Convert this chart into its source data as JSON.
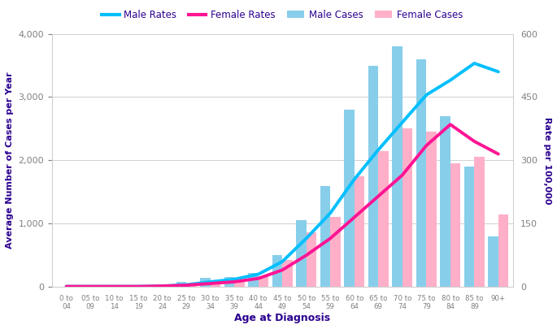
{
  "categories": [
    "0 to\n04",
    "05 to\n09",
    "10 to\n14",
    "15 to\n19",
    "20 to\n24",
    "25 to\n29",
    "30 to\n34",
    "35 to\n39",
    "40 to\n44",
    "45 to\n49",
    "50 to\n54",
    "55 to\n59",
    "60 to\n64",
    "65 to\n69",
    "70 to\n74",
    "75 to\n79",
    "80 to\n84",
    "85 to\n89",
    "90+"
  ],
  "male_cases": [
    5,
    5,
    5,
    5,
    15,
    80,
    140,
    150,
    220,
    500,
    1050,
    1600,
    2800,
    3500,
    3800,
    3600,
    2700,
    1900,
    800
  ],
  "female_cases": [
    5,
    5,
    5,
    5,
    10,
    55,
    100,
    110,
    175,
    420,
    860,
    1100,
    1750,
    2150,
    2500,
    2450,
    1950,
    2050,
    1150
  ],
  "male_rates": [
    1,
    1,
    1,
    1,
    2,
    5,
    12,
    18,
    30,
    60,
    115,
    175,
    255,
    325,
    390,
    455,
    490,
    530,
    510
  ],
  "female_rates": [
    1,
    1,
    1,
    1,
    2,
    4,
    8,
    12,
    20,
    40,
    75,
    115,
    165,
    215,
    265,
    335,
    385,
    345,
    315
  ],
  "male_bar_color": "#87CEEB",
  "female_bar_color": "#FFB0C8",
  "male_line_color": "#00BFFF",
  "female_line_color": "#FF1493",
  "title_color": "#2B0090",
  "tick_color": "#808080",
  "ylabel_left": "Average Number of Cases per Year",
  "ylabel_right": "Rate per 100,000",
  "xlabel": "Age at Diagnosis",
  "ylim_left": [
    0,
    4000
  ],
  "ylim_right": [
    0,
    600
  ],
  "yticks_left": [
    0,
    1000,
    2000,
    3000,
    4000
  ],
  "yticks_right": [
    0,
    150,
    300,
    450,
    600
  ],
  "legend_labels": [
    "Male Rates",
    "Female Rates",
    "Male Cases",
    "Female Cases"
  ],
  "background_color": "#ffffff",
  "line_width": 2.8,
  "bar_width": 0.42
}
